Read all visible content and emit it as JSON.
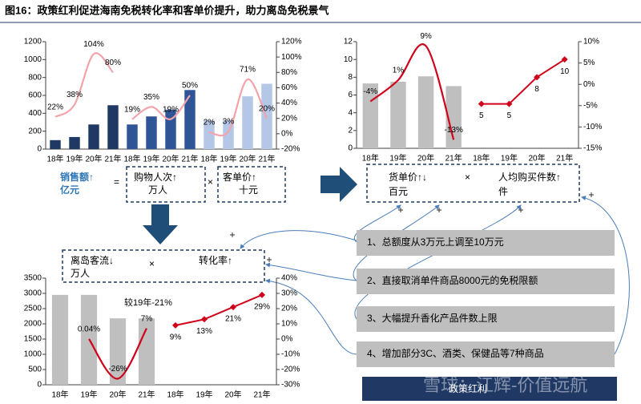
{
  "title": "图16：政策红利促进海南免税转化率和客单价提升，助力离岛免税景气",
  "chart_data": [
    {
      "type": "grouped_bar_line",
      "categories": [
        "18年",
        "19年",
        "20年",
        "21年"
      ],
      "ylim": [
        0,
        1200
      ],
      "yticks": [
        0,
        200,
        400,
        600,
        800,
        1000,
        1200
      ],
      "y2lim": [
        -20,
        120
      ],
      "y2ticks": [
        {
          "value": -20,
          "label": "-20%"
        },
        {
          "value": 0,
          "label": "0%"
        },
        {
          "value": 20,
          "label": "20%"
        },
        {
          "value": 40,
          "label": "40%"
        },
        {
          "value": 60,
          "label": "60%"
        },
        {
          "value": 80,
          "label": "80%"
        },
        {
          "value": 100,
          "label": "100%"
        },
        {
          "value": 120,
          "label": "120%"
        }
      ],
      "line_color": "#f4a3ab",
      "groups": [
        {
          "bars": {
            "color": "#1f3864",
            "values": [
              100,
              135,
              275,
              490
            ]
          },
          "line": {
            "axis": "y2",
            "values": [
              22,
              38,
              104,
              80
            ],
            "value_labels": [
              "22%",
              "38%",
              "104%",
              "80%"
            ]
          }
        },
        {
          "bars": {
            "color": "#2f5597",
            "values": [
              275,
              365,
              440,
              660
            ]
          },
          "line": {
            "axis": "y2",
            "values": [
              19,
              35,
              19,
              50
            ],
            "value_labels": [
              "19%",
              "35%",
              "19%",
              "50%"
            ]
          }
        },
        {
          "bars": {
            "color": "#b4c7e7",
            "values": [
              320,
              320,
              590,
              730
            ]
          },
          "line": {
            "axis": "y2",
            "values": [
              2,
              3,
              71,
              20
            ],
            "value_labels": [
              "2%",
              "3%",
              "71%",
              "20%"
            ]
          }
        }
      ]
    },
    {
      "type": "bar_line",
      "categories": [
        "18年",
        "19年",
        "20年",
        "21年",
        "18年",
        "19年",
        "20年",
        "21年"
      ],
      "ylim": [
        0,
        12
      ],
      "yticks": [
        0,
        2,
        4,
        6,
        8,
        10,
        12
      ],
      "y2lim": [
        -15,
        10
      ],
      "y2ticks": [
        {
          "value": -15,
          "label": "-15%"
        },
        {
          "value": -10,
          "label": "-10%"
        },
        {
          "value": -5,
          "label": "-5%"
        },
        {
          "value": 0,
          "label": "0%"
        },
        {
          "value": 5,
          "label": "5%"
        },
        {
          "value": 10,
          "label": "10%"
        }
      ],
      "series": [
        {
          "kind": "bar",
          "color": "#bfbfbf",
          "values": [
            7.3,
            7.5,
            8.1,
            7.0,
            null,
            null,
            null,
            null
          ]
        },
        {
          "kind": "line",
          "smooth": true,
          "color": "#d0021b",
          "axis": "y2",
          "values": [
            -4,
            1,
            9,
            -13,
            null,
            null,
            null,
            null
          ],
          "value_labels": [
            "-4%",
            "1%",
            "9%",
            "-13%",
            null,
            null,
            null,
            null
          ]
        },
        {
          "kind": "line",
          "markers": true,
          "color": "#d0021b",
          "values": [
            null,
            null,
            null,
            null,
            5,
            5,
            8,
            10
          ]
        }
      ]
    },
    {
      "type": "bar_line",
      "categories": [
        "18年",
        "19年",
        "20年",
        "21年",
        "18年",
        "19年",
        "20年",
        "21年"
      ],
      "ylim": [
        0,
        3500
      ],
      "yticks": [
        0,
        500,
        1000,
        1500,
        2000,
        2500,
        3000,
        3500
      ],
      "y2lim": [
        -30,
        40
      ],
      "y2ticks": [
        {
          "value": -30,
          "label": "-30%"
        },
        {
          "value": -20,
          "label": "-20%"
        },
        {
          "value": -10,
          "label": "-10%"
        },
        {
          "value": 0,
          "label": "0%"
        },
        {
          "value": 10,
          "label": "10%"
        },
        {
          "value": 20,
          "label": "20%"
        },
        {
          "value": 30,
          "label": "30%"
        },
        {
          "value": 40,
          "label": "40%"
        }
      ],
      "annotation": "较19年-21%",
      "series": [
        {
          "kind": "bar",
          "color": "#bfbfbf",
          "values": [
            2950,
            2950,
            2180,
            2180,
            null,
            null,
            null,
            null
          ]
        },
        {
          "kind": "line",
          "smooth": true,
          "color": "#d0021b",
          "axis": "y2",
          "values": [
            null,
            0.04,
            -26,
            7,
            null,
            null,
            null,
            null
          ],
          "value_labels": [
            null,
            "0.04%",
            "-26%",
            "7%",
            null,
            null,
            null,
            null
          ]
        },
        {
          "kind": "line",
          "markers": true,
          "color": "#d0021b",
          "axis": "y2",
          "values": [
            null,
            null,
            null,
            null,
            9,
            13,
            21,
            29
          ],
          "value_labels": [
            null,
            null,
            null,
            null,
            "9%",
            "13%",
            "21%",
            "29%"
          ]
        }
      ]
    }
  ],
  "formula_sales": {
    "result": [
      "销售额↑",
      "亿元"
    ],
    "equals": "=",
    "factor1": [
      "购物人次↑",
      "万人"
    ],
    "times": "×",
    "factor2": [
      "客单价↑",
      "十元"
    ]
  },
  "formula_price": {
    "factor1": [
      "货单价↑↓",
      "百元"
    ],
    "times": "×",
    "factor2": [
      "人均购买件数↑",
      "件"
    ]
  },
  "formula_traffic": {
    "factor1": [
      "离岛客流↓",
      "万人"
    ],
    "times": "×",
    "factor2": [
      "转化率↑"
    ]
  },
  "policies": {
    "items": [
      "1、总额度从3万元上调至10万元",
      "2、直接取消单件商品8000元的免税限额",
      "3、大幅提升香化产品件数上限",
      "4、增加部分3C、酒类、保健品等7种商品"
    ],
    "label": "政策红利"
  },
  "watermark": "雪球：江辉-价值远航"
}
